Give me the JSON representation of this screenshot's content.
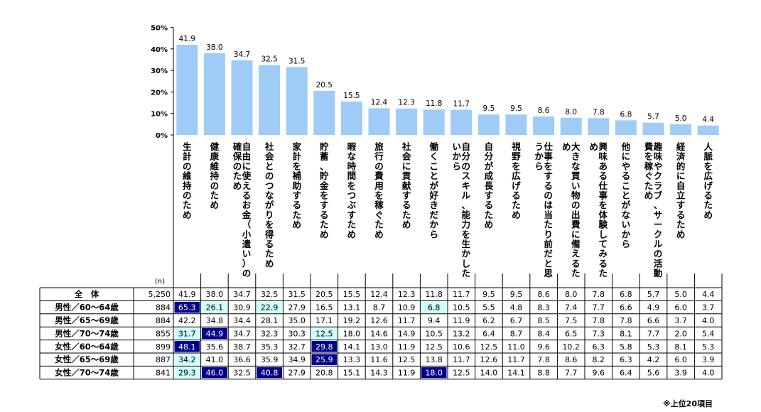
{
  "chart_data": {
    "type": "bar",
    "ylabel": "",
    "yticks": [
      "50%",
      "40%",
      "30%",
      "20%",
      "10%",
      "0%"
    ],
    "ylim": [
      0,
      50
    ],
    "grid": false,
    "categories": [
      "生計の維持のため",
      "健康維持のため",
      "自由に使えるお金（小遣い）の確保のため",
      "社会とのつながりを得るため",
      "家計を補助するため",
      "貯蓄、貯金をするため",
      "暇な時間をつぶすため",
      "旅行の費用を稼ぐため",
      "社会に貢献するため",
      "働くことが好きだから",
      "自分のスキル、能力を生かしたいから",
      "自分が成長するため",
      "視野を広げるため",
      "仕事をするのは当たり前だと思うから",
      "大きな買い物の出費に備えるため",
      "興味ある仕事を体験してみるため",
      "他にやることがないから",
      "趣味やクラブ、サークルの活動費を稼ぐため",
      "経済的に自立するため",
      "人脈を広げるため"
    ],
    "values": [
      41.9,
      38.0,
      34.7,
      32.5,
      31.5,
      20.5,
      15.5,
      12.4,
      12.3,
      11.8,
      11.7,
      9.5,
      9.5,
      8.6,
      8.0,
      7.8,
      6.8,
      5.7,
      5.0,
      4.4
    ],
    "table": {
      "n_header": "(n)",
      "rows": [
        {
          "label": "全　体",
          "n": "5,250",
          "values": [
            "41.9",
            "38.0",
            "34.7",
            "32.5",
            "31.5",
            "20.5",
            "15.5",
            "12.4",
            "12.3",
            "11.8",
            "11.7",
            "9.5",
            "9.5",
            "8.6",
            "8.0",
            "7.8",
            "6.8",
            "5.7",
            "5.0",
            "4.4"
          ],
          "highlights": []
        },
        {
          "label": "男性／60～64歳",
          "n": "884",
          "values": [
            "65.3",
            "26.1",
            "30.9",
            "22.9",
            "27.9",
            "16.5",
            "13.1",
            "8.7",
            "10.9",
            "6.8",
            "10.5",
            "5.5",
            "4.8",
            "8.3",
            "7.4",
            "7.7",
            "6.6",
            "4.9",
            "6.0",
            "3.7"
          ],
          "highlights": [
            "dark",
            "light",
            "",
            "light",
            "",
            "",
            "",
            "",
            "",
            "light",
            "",
            "",
            "",
            "",
            "",
            "",
            "",
            "",
            "",
            ""
          ]
        },
        {
          "label": "男性／65～69歳",
          "n": "884",
          "values": [
            "42.2",
            "34.8",
            "34.4",
            "28.1",
            "35.0",
            "17.1",
            "19.2",
            "12.6",
            "11.7",
            "9.4",
            "11.9",
            "6.2",
            "6.7",
            "8.5",
            "7.5",
            "7.8",
            "7.8",
            "6.6",
            "3.7",
            "4.0"
          ],
          "highlights": []
        },
        {
          "label": "男性／70～74歳",
          "n": "855",
          "values": [
            "31.7",
            "44.9",
            "34.7",
            "32.3",
            "30.3",
            "12.5",
            "18.0",
            "14.6",
            "14.9",
            "10.5",
            "13.2",
            "6.4",
            "8.7",
            "8.4",
            "6.5",
            "7.3",
            "8.1",
            "7.7",
            "2.0",
            "5.4"
          ],
          "highlights": [
            "light",
            "dark",
            "",
            "",
            "",
            "light",
            "",
            "",
            "",
            "",
            "",
            "",
            "",
            "",
            "",
            "",
            "",
            "",
            "",
            ""
          ]
        },
        {
          "label": "女性／60～64歳",
          "n": "899",
          "values": [
            "48.1",
            "35.6",
            "38.7",
            "35.3",
            "32.7",
            "29.8",
            "14.1",
            "13.0",
            "11.9",
            "12.5",
            "10.6",
            "12.5",
            "11.0",
            "9.6",
            "10.2",
            "6.3",
            "5.8",
            "5.3",
            "8.1",
            "5.3"
          ],
          "highlights": [
            "dark",
            "",
            "",
            "",
            "",
            "dark",
            "",
            "",
            "",
            "",
            "",
            "",
            "",
            "",
            "",
            "",
            "",
            "",
            "",
            ""
          ]
        },
        {
          "label": "女性／65～69歳",
          "n": "887",
          "values": [
            "34.2",
            "41.0",
            "36.6",
            "35.9",
            "34.9",
            "25.9",
            "13.3",
            "11.6",
            "12.5",
            "13.8",
            "11.7",
            "12.6",
            "11.7",
            "7.8",
            "8.6",
            "8.2",
            "6.3",
            "4.2",
            "6.0",
            "3.9"
          ],
          "highlights": [
            "light",
            "",
            "",
            "",
            "",
            "dark",
            "",
            "",
            "",
            "",
            "",
            "",
            "",
            "",
            "",
            "",
            "",
            "",
            "",
            ""
          ]
        },
        {
          "label": "女性／70～74歳",
          "n": "841",
          "values": [
            "29.3",
            "46.0",
            "32.5",
            "40.8",
            "27.9",
            "20.8",
            "15.1",
            "14.3",
            "11.9",
            "18.0",
            "12.5",
            "14.0",
            "14.1",
            "8.8",
            "7.7",
            "9.6",
            "6.4",
            "5.6",
            "3.9",
            "4.0"
          ],
          "highlights": [
            "light",
            "dark",
            "",
            "dark",
            "",
            "",
            "",
            "",
            "",
            "dark",
            "",
            "",
            "",
            "",
            "",
            "",
            "",
            "",
            "",
            ""
          ]
        }
      ]
    },
    "footnote": "※上位20項目"
  },
  "colors": {
    "bar": "#9fcbf7",
    "highlight_dark": "#00008b",
    "highlight_light": "#ccffff"
  }
}
